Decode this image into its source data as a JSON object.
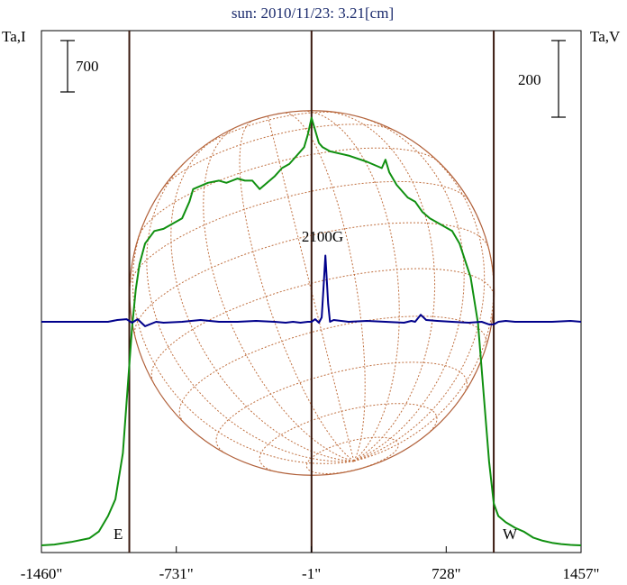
{
  "chart_data": {
    "type": "line",
    "title": "sun: 2010/11/23: 3.21[cm]",
    "left_axis_label": "Ta,I",
    "right_axis_label": "Ta,V",
    "scale_bar_left": "700",
    "scale_bar_right": "200",
    "x_ticks": [
      "-1460\"",
      "-731\"",
      "-1\"",
      "728\"",
      "1457\""
    ],
    "x_tick_values": [
      -1460,
      -731,
      -1,
      728,
      1457
    ],
    "xlim": [
      -1460,
      1457
    ],
    "disk_limb_arcsec": 985,
    "limb_labels": {
      "east": "E",
      "west": "W"
    },
    "annotations": [
      {
        "text": "2100G",
        "x": 60
      }
    ],
    "colors": {
      "intensity": "#109010",
      "polarization": "#00008b",
      "disk": "#b0603a",
      "grid": "#c07040",
      "axis": "#000000",
      "markers": "#3a1a10",
      "title": "#1a2a6c"
    },
    "series": [
      {
        "key": "ta_i",
        "x": [
          -1460,
          -1390,
          -1300,
          -1200,
          -1150,
          -1100,
          -1060,
          -1020,
          -990,
          -970,
          -950,
          -930,
          -900,
          -850,
          -800,
          -760,
          -700,
          -660,
          -640,
          -560,
          -500,
          -460,
          -400,
          -360,
          -320,
          -280,
          -200,
          -160,
          -120,
          -80,
          -40,
          -20,
          0,
          20,
          40,
          60,
          100,
          200,
          300,
          380,
          400,
          420,
          460,
          520,
          560,
          600,
          640,
          700,
          760,
          800,
          860,
          900,
          920,
          940,
          960,
          985,
          1010,
          1050,
          1100,
          1150,
          1200,
          1250,
          1300,
          1350,
          1400,
          1457
        ],
        "y": [
          0,
          20,
          80,
          170,
          330,
          700,
          1100,
          2200,
          4000,
          5200,
          6100,
          6700,
          7200,
          7500,
          7550,
          7650,
          7800,
          8200,
          8500,
          8650,
          8700,
          8650,
          8750,
          8700,
          8700,
          8500,
          8800,
          9000,
          9100,
          9300,
          9500,
          9800,
          10200,
          9900,
          9600,
          9500,
          9400,
          9300,
          9150,
          9000,
          9200,
          8900,
          8600,
          8300,
          8200,
          7950,
          7800,
          7650,
          7500,
          7200,
          6400,
          5300,
          4200,
          3100,
          2000,
          1000,
          700,
          550,
          420,
          320,
          180,
          110,
          60,
          30,
          10,
          0
        ]
      },
      {
        "key": "ta_v",
        "x": [
          -1460,
          -1300,
          -1100,
          -1050,
          -1000,
          -970,
          -940,
          -900,
          -840,
          -800,
          -700,
          -600,
          -500,
          -400,
          -300,
          -200,
          -140,
          -100,
          -60,
          -20,
          0,
          20,
          40,
          55,
          65,
          75,
          90,
          100,
          120,
          200,
          300,
          400,
          500,
          540,
          560,
          590,
          620,
          680,
          760,
          850,
          920,
          960,
          985,
          1010,
          1050,
          1100,
          1200,
          1300,
          1400,
          1457
        ],
        "y": [
          0,
          0,
          0,
          2,
          3,
          -1,
          3,
          -5,
          0,
          -1,
          0,
          2,
          0,
          0,
          1,
          0,
          -1,
          0,
          -1,
          0,
          0,
          3,
          -1,
          5,
          40,
          75,
          20,
          0,
          2,
          0,
          1,
          0,
          -1,
          1,
          0,
          8,
          2,
          1,
          0,
          -1,
          0,
          -3,
          -3,
          0,
          1,
          0,
          0,
          0,
          1,
          0
        ]
      }
    ]
  }
}
